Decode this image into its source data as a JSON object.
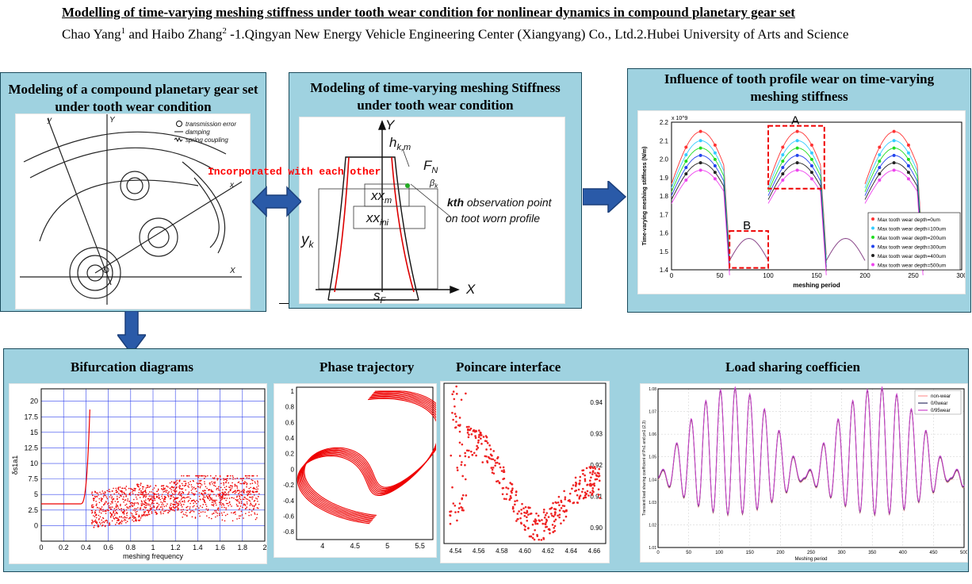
{
  "header": {
    "title": "Modelling of time-varying meshing stiffness under tooth wear condition for nonlinear dynamics in compound planetary gear set",
    "authors_line": "Chao Yang1 and Haibo Zhang2 -1.Qingyan New Energy Vehicle Engineering Center (Xiangyang) Co., Ltd.2.Hubei University of Arts and Science"
  },
  "panel1": {
    "title": "Modeling of  a compound planetary gear set under tooth wear condition",
    "legend": [
      "transmission error",
      "damping",
      "spring coupling"
    ],
    "axes": [
      "Y",
      "y",
      "X",
      "x",
      "O"
    ]
  },
  "connector_label": "Incorporated with each other",
  "panel2": {
    "title": "Modeling of time-varying meshing Stiffness under tooth wear condition",
    "labels": {
      "y": "Y",
      "x": "X",
      "h": "h_k,m",
      "f": "F_N",
      "beta": "β_k",
      "xxm": "xx_m",
      "xxini": "xx_ini",
      "yk": "y_k",
      "sf": "s_F"
    },
    "note_line1": "kth observation point",
    "note_line2": "on toot worn profile"
  },
  "panel3": {
    "title": "Influence of tooth profile wear on time-varying meshing stiffness",
    "chart_data": {
      "type": "line",
      "ylabel": "Time-varying meshing stiffness (N/m)",
      "xlabel": "meshing period",
      "xlim": [
        0,
        300
      ],
      "ylim": [
        1.4,
        2.2
      ],
      "y_multiplier": "x 10^9",
      "annotations": [
        "A",
        "B"
      ],
      "series": [
        {
          "name": "Max tooth wear depth=0um",
          "color": "#ff3333",
          "peak": 2.15
        },
        {
          "name": "Max tooth wear depth=100um",
          "color": "#33ccff",
          "peak": 2.1
        },
        {
          "name": "Max tooth wear depth=200um",
          "color": "#22dd22",
          "peak": 2.06
        },
        {
          "name": "Max tooth wear depth=300um",
          "color": "#2244ee",
          "peak": 2.02
        },
        {
          "name": "Max tooth wear depth=400um",
          "color": "#222222",
          "peak": 1.98
        },
        {
          "name": "Max tooth wear depth=500um",
          "color": "#ee44ee",
          "peak": 1.94
        }
      ]
    }
  },
  "panel4": {
    "titles": [
      "Bifurcation diagrams",
      "Phase trajectory",
      "Poincare interface",
      "Load sharing coefficien"
    ],
    "chart_data": [
      {
        "type": "scatter",
        "xlabel": "meshing frequency",
        "ylabel": "δs1a1",
        "xlim": [
          0,
          2
        ],
        "ylim": [
          -2.5,
          22
        ]
      },
      {
        "type": "line",
        "xlim": [
          3.6,
          5.7
        ],
        "ylim": [
          -0.9,
          1.05
        ]
      },
      {
        "type": "scatter",
        "xlim": [
          4.53,
          4.67
        ],
        "ylim": [
          0.895,
          0.946
        ]
      },
      {
        "type": "line",
        "xlabel": "Meshing period",
        "ylabel": "Transient load sharing coefficient of Pn1 and pn1 (2,3)",
        "xlim": [
          0,
          500
        ],
        "ylim": [
          1.01,
          1.08
        ],
        "series": [
          {
            "name": "non-wear"
          },
          {
            "name": "0/0wear"
          },
          {
            "name": "0/95wear"
          }
        ]
      }
    ]
  }
}
